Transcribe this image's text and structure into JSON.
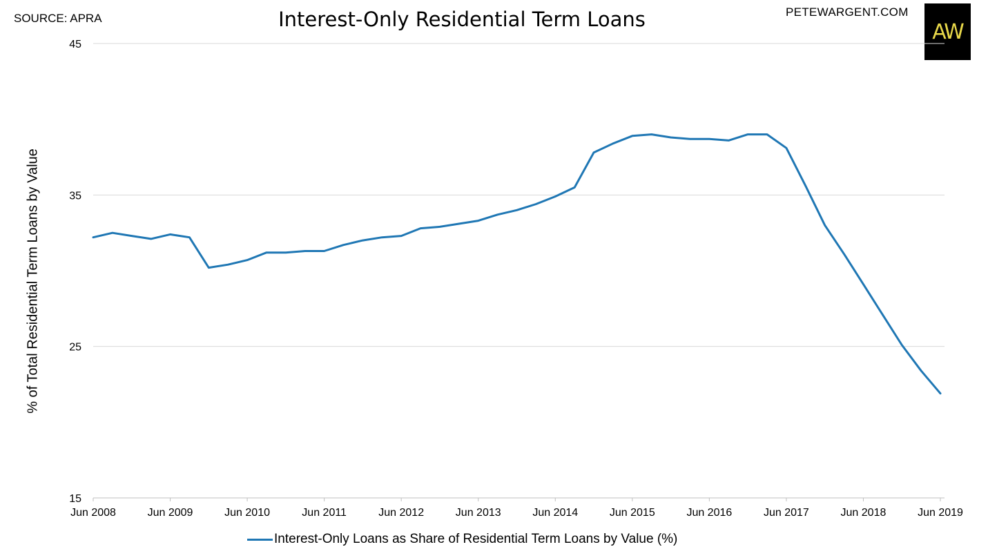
{
  "header": {
    "source": "SOURCE: APRA",
    "site": "PETEWARGENT.COM",
    "logo_text": "AW"
  },
  "colors": {
    "series": "#1f77b4",
    "grid": "#d9d9d9",
    "axis": "#bfbfbf"
  },
  "chart_data": {
    "type": "line",
    "title": "Interest-Only Residential Term Loans",
    "xlabel": "",
    "ylabel": "% of Total Residential Term Loans by Value",
    "ylim": [
      15,
      45
    ],
    "yticks": [
      15,
      25,
      35,
      45
    ],
    "grid": true,
    "legend_position": "bottom",
    "x_tick_labels": [
      "Jun 2008",
      "Jun 2009",
      "Jun 2010",
      "Jun 2011",
      "Jun 2012",
      "Jun 2013",
      "Jun 2014",
      "Jun 2015",
      "Jun 2016",
      "Jun 2017",
      "Jun 2018",
      "Jun 2019"
    ],
    "x": [
      "Jun 2008",
      "Sep 2008",
      "Dec 2008",
      "Mar 2009",
      "Jun 2009",
      "Sep 2009",
      "Dec 2009",
      "Mar 2010",
      "Jun 2010",
      "Sep 2010",
      "Dec 2010",
      "Mar 2011",
      "Jun 2011",
      "Sep 2011",
      "Dec 2011",
      "Mar 2012",
      "Jun 2012",
      "Sep 2012",
      "Dec 2012",
      "Mar 2013",
      "Jun 2013",
      "Sep 2013",
      "Dec 2013",
      "Mar 2014",
      "Jun 2014",
      "Sep 2014",
      "Dec 2014",
      "Mar 2015",
      "Jun 2015",
      "Sep 2015",
      "Dec 2015",
      "Mar 2016",
      "Jun 2016",
      "Sep 2016",
      "Dec 2016",
      "Mar 2017",
      "Jun 2017",
      "Sep 2017",
      "Dec 2017",
      "Mar 2018",
      "Jun 2018",
      "Sep 2018",
      "Dec 2018",
      "Mar 2019",
      "Jun 2019"
    ],
    "series": [
      {
        "name": "Interest-Only Loans as Share of Residential Term Loans by Value (%)",
        "values": [
          32.2,
          32.5,
          32.3,
          32.1,
          32.4,
          32.2,
          30.2,
          30.4,
          30.7,
          31.2,
          31.2,
          31.3,
          31.3,
          31.7,
          32.0,
          32.2,
          32.3,
          32.8,
          32.9,
          33.1,
          33.3,
          33.7,
          34.0,
          34.4,
          34.9,
          35.5,
          37.8,
          38.4,
          38.9,
          39.0,
          38.8,
          38.7,
          38.7,
          38.6,
          39.0,
          39.0,
          38.1,
          35.6,
          33.0,
          31.1,
          29.1,
          27.1,
          25.1,
          23.4,
          21.9
        ]
      }
    ]
  }
}
